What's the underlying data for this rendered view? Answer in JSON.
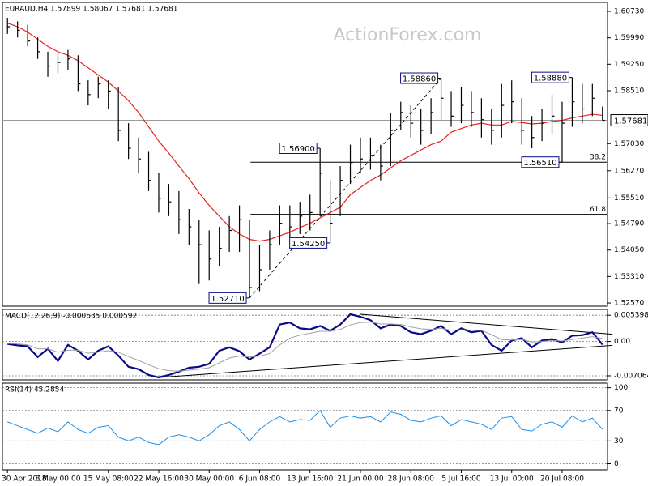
{
  "chart_data": [
    {
      "type": "ohlc",
      "title": "EURAUD,H4  1.57899 1.58067 1.57681 1.57681",
      "watermark": "ActionForex.com",
      "categories": [
        "30 Apr 2018",
        null,
        null,
        null,
        null,
        "8 May 00:00",
        null,
        null,
        null,
        null,
        "15 May 08:00",
        null,
        null,
        null,
        null,
        "22 May 16:00",
        null,
        null,
        null,
        null,
        "30 May 00:00",
        null,
        null,
        null,
        null,
        "6 Jun 08:00",
        null,
        null,
        null,
        null,
        "13 Jun 16:00",
        null,
        null,
        null,
        null,
        "21 Jun 00:00",
        null,
        null,
        null,
        null,
        "28 Jun 08:00",
        null,
        null,
        null,
        null,
        "5 Jul 16:00",
        null,
        null,
        null,
        null,
        "13 Jul 00:00",
        null,
        null,
        null,
        null,
        "20 Jul 08:00",
        null,
        null,
        null,
        null
      ],
      "high": [
        1.6055,
        1.6045,
        1.6035,
        1.6,
        1.596,
        1.5955,
        1.5965,
        1.595,
        1.588,
        1.589,
        1.588,
        1.586,
        1.576,
        1.572,
        1.568,
        1.562,
        1.559,
        1.557,
        1.552,
        1.549,
        1.546,
        1.547,
        1.55,
        1.553,
        1.549,
        1.542,
        1.546,
        1.553,
        1.553,
        1.554,
        1.556,
        1.569,
        1.56,
        1.564,
        1.57,
        1.572,
        1.572,
        1.57,
        1.579,
        1.582,
        1.581,
        1.58,
        1.583,
        1.5886,
        1.585,
        1.586,
        1.585,
        1.583,
        1.58,
        1.587,
        1.588,
        1.583,
        1.578,
        1.58,
        1.584,
        1.582,
        1.5888,
        1.587,
        1.587,
        1.58067
      ],
      "low": [
        1.601,
        1.6,
        1.5975,
        1.594,
        1.589,
        1.59,
        1.591,
        1.585,
        1.581,
        1.583,
        1.58,
        1.571,
        1.566,
        1.562,
        1.557,
        1.551,
        1.55,
        1.545,
        1.542,
        1.531,
        1.532,
        1.536,
        1.54,
        1.54,
        1.5271,
        1.529,
        1.535,
        1.542,
        1.544,
        1.545,
        1.546,
        1.55,
        1.5425,
        1.55,
        1.559,
        1.562,
        1.563,
        1.56,
        1.564,
        1.574,
        1.572,
        1.57,
        1.573,
        1.577,
        1.575,
        1.576,
        1.575,
        1.572,
        1.57,
        1.572,
        1.576,
        1.57,
        1.569,
        1.571,
        1.573,
        1.5651,
        1.575,
        1.576,
        1.578,
        1.57681
      ],
      "close": [
        1.603,
        1.602,
        1.599,
        1.596,
        1.592,
        1.593,
        1.594,
        1.587,
        1.584,
        1.587,
        1.585,
        1.574,
        1.569,
        1.566,
        1.56,
        1.555,
        1.554,
        1.549,
        1.547,
        1.542,
        1.538,
        1.541,
        1.546,
        1.549,
        1.53,
        1.535,
        1.542,
        1.548,
        1.547,
        1.55,
        1.551,
        1.562,
        1.548,
        1.56,
        1.565,
        1.566,
        1.567,
        1.564,
        1.574,
        1.579,
        1.576,
        1.574,
        1.579,
        1.583,
        1.578,
        1.581,
        1.579,
        1.577,
        1.574,
        1.581,
        1.582,
        1.574,
        1.572,
        1.576,
        1.578,
        1.576,
        1.582,
        1.58,
        1.583,
        1.57681
      ],
      "high_labels": [
        null,
        null,
        null,
        null,
        null,
        null,
        null,
        null,
        null,
        null,
        null,
        null,
        null,
        null,
        null,
        null,
        null,
        null,
        null,
        null,
        null,
        null,
        null,
        null,
        null,
        null,
        null,
        null,
        null,
        null,
        null,
        "1.56900",
        null,
        null,
        null,
        null,
        null,
        null,
        null,
        null,
        null,
        null,
        null,
        "1.58860",
        null,
        null,
        null,
        null,
        null,
        null,
        null,
        null,
        null,
        null,
        null,
        null,
        "1.58880",
        null,
        null,
        null
      ],
      "low_labels": [
        null,
        null,
        null,
        null,
        null,
        null,
        null,
        null,
        null,
        null,
        null,
        null,
        null,
        null,
        null,
        null,
        null,
        null,
        null,
        null,
        null,
        null,
        null,
        null,
        "1.52710",
        null,
        null,
        null,
        null,
        null,
        null,
        null,
        "1.54250",
        null,
        null,
        null,
        null,
        null,
        null,
        null,
        null,
        null,
        null,
        null,
        null,
        null,
        null,
        null,
        null,
        null,
        null,
        null,
        null,
        null,
        null,
        "1.56510",
        null,
        null,
        null,
        null
      ],
      "color": "#000000",
      "series": [
        {
          "color": "#e8231f",
          "values": [
            1.604,
            1.603,
            1.6015,
            1.5995,
            1.5975,
            1.596,
            1.595,
            1.5935,
            1.5915,
            1.5895,
            1.5875,
            1.585,
            1.5823,
            1.579,
            1.575,
            1.571,
            1.5676,
            1.564,
            1.5605,
            1.5565,
            1.553,
            1.55,
            1.547,
            1.545,
            1.5435,
            1.543,
            1.5435,
            1.5445,
            1.5455,
            1.5468,
            1.548,
            1.5495,
            1.551,
            1.5525,
            1.556,
            1.558,
            1.56,
            1.5615,
            1.5635,
            1.5655,
            1.567,
            1.5685,
            1.57,
            1.571,
            1.5735,
            1.5745,
            1.5755,
            1.576,
            1.5755,
            1.5755,
            1.5765,
            1.5762,
            1.5758,
            1.576,
            1.5765,
            1.5768,
            1.5775,
            1.578,
            1.5785,
            1.5782
          ]
        }
      ],
      "levels": [
        {
          "value": 1.5651,
          "label": "38.2"
        },
        {
          "value": 1.5505,
          "label": "61.8"
        }
      ],
      "last_price": 1.57681,
      "trendlines": [
        {
          "x": [
            24,
            43
          ],
          "y": [
            1.5271,
            1.5886
          ]
        }
      ],
      "ylim": [
        1.5248,
        1.6098
      ],
      "yticks": [
        {
          "value": 1.6073,
          "label": "1.60730"
        },
        {
          "value": 1.5999,
          "label": "1.59990"
        },
        {
          "value": 1.5925,
          "label": "1.59250"
        },
        {
          "value": 1.5851,
          "label": "1.58510"
        },
        {
          "value": 1.5703,
          "label": "1.57030"
        },
        {
          "value": 1.5627,
          "label": "1.56270"
        },
        {
          "value": 1.5551,
          "label": "1.55510"
        },
        {
          "value": 1.5479,
          "label": "1.54790"
        },
        {
          "value": 1.5405,
          "label": "1.54050"
        },
        {
          "value": 1.5331,
          "label": "1.53310"
        },
        {
          "value": 1.5257,
          "label": "1.52570"
        }
      ],
      "grid": false
    },
    {
      "type": "macd",
      "title": "MACD(12,26,9) -0.000635 0.000592",
      "series": [
        {
          "color": "#0b0b8a",
          "values": [
            -0.0005,
            -0.0008,
            -0.001,
            -0.0032,
            -0.0015,
            -0.004,
            -0.0007,
            -0.0019,
            -0.0037,
            -0.0019,
            -0.001,
            -0.0029,
            -0.0052,
            -0.0057,
            -0.0069,
            -0.0074,
            -0.0069,
            -0.0062,
            -0.0054,
            -0.0052,
            -0.0046,
            -0.0019,
            -0.0012,
            -0.002,
            -0.0037,
            -0.0025,
            -0.0012,
            0.0035,
            0.0039,
            0.0027,
            0.0025,
            0.0032,
            0.0022,
            0.0035,
            0.0056,
            0.0051,
            0.0044,
            0.0027,
            0.0035,
            0.0032,
            0.0019,
            0.0015,
            0.0022,
            0.0032,
            0.0015,
            0.0027,
            0.0019,
            0.0022,
            -0.0007,
            -0.0019,
            0.0002,
            0.0007,
            -0.0012,
            0.0002,
            0.0005,
            -0.0002,
            0.0012,
            0.0013,
            0.0019,
            -0.000635
          ]
        },
        {
          "color": "#a0a0a0",
          "values": [
            -0.0004,
            -0.0005,
            -0.0007,
            -0.0015,
            -0.0015,
            -0.0022,
            -0.0018,
            -0.0018,
            -0.0024,
            -0.0022,
            -0.0019,
            -0.0022,
            -0.0031,
            -0.0039,
            -0.0048,
            -0.0056,
            -0.006,
            -0.0061,
            -0.0059,
            -0.0057,
            -0.0054,
            -0.0044,
            -0.0034,
            -0.003,
            -0.0032,
            -0.003,
            -0.0025,
            -0.0007,
            0.0007,
            0.0013,
            0.0017,
            0.0021,
            0.0021,
            0.0025,
            0.0034,
            0.0039,
            0.004,
            0.0036,
            0.0036,
            0.0035,
            0.003,
            0.0026,
            0.0025,
            0.0027,
            0.0023,
            0.0024,
            0.0023,
            0.0023,
            0.0014,
            0.0004,
            0.0003,
            0.0004,
            -0.0001,
            0,
            0.0002,
            0.0001,
            0.0004,
            0.0007,
            0.001,
            0.000592
          ]
        }
      ],
      "trendlines": [
        {
          "x": [
            35,
            60
          ],
          "y": [
            0.0056,
            0.0015
          ]
        },
        {
          "x": [
            15,
            60
          ],
          "y": [
            -0.0074,
            -0.0008
          ]
        }
      ],
      "ylim": [
        -0.0079,
        0.0066
      ],
      "yticks": [
        0.005398,
        {
          "value": 0,
          "label": "0.00"
        },
        -0.007064
      ],
      "grid": true
    },
    {
      "type": "line",
      "title": "RSI(14) 45.2854",
      "series": [
        {
          "color": "#1e8fe6",
          "values": [
            55,
            50,
            45,
            40,
            47,
            42,
            55,
            45,
            40,
            48,
            50,
            35,
            30,
            35,
            28,
            25,
            35,
            38,
            35,
            30,
            38,
            50,
            55,
            45,
            30,
            45,
            55,
            62,
            55,
            58,
            57,
            70,
            48,
            60,
            63,
            60,
            62,
            55,
            68,
            65,
            57,
            55,
            60,
            63,
            50,
            58,
            55,
            52,
            45,
            60,
            62,
            45,
            43,
            52,
            55,
            48,
            63,
            55,
            60,
            45.2854
          ]
        }
      ],
      "ylim": [
        -8,
        106
      ],
      "yticks": [
        100,
        70,
        30,
        0
      ],
      "grid": true
    }
  ]
}
